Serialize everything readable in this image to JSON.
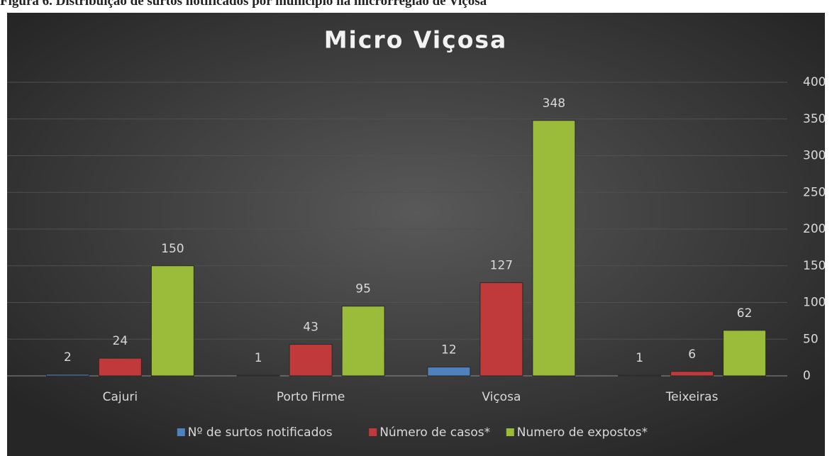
{
  "caption": "Figura 6. Distribuição de surtos notificados por município na microrregião de Viçosa",
  "chart_data": {
    "type": "bar",
    "title": "Micro Viçosa",
    "categories": [
      "Cajuri",
      "Porto Firme",
      "Viçosa",
      "Teixeiras"
    ],
    "series": [
      {
        "name": "Nº de surtos notificados",
        "color": "#4f81bd",
        "values": [
          2,
          1,
          12,
          1
        ]
      },
      {
        "name": "Número de casos*",
        "color": "#c0393b",
        "values": [
          24,
          43,
          127,
          6
        ]
      },
      {
        "name": "Numero de expostos*",
        "color": "#9bbb3b",
        "values": [
          150,
          95,
          348,
          62
        ]
      }
    ],
    "ylim": [
      0,
      400
    ],
    "yticks": [
      0,
      50,
      100,
      150,
      200,
      250,
      300,
      350,
      400
    ],
    "grid": true,
    "legend": "bottom",
    "y_axis_side": "right"
  }
}
